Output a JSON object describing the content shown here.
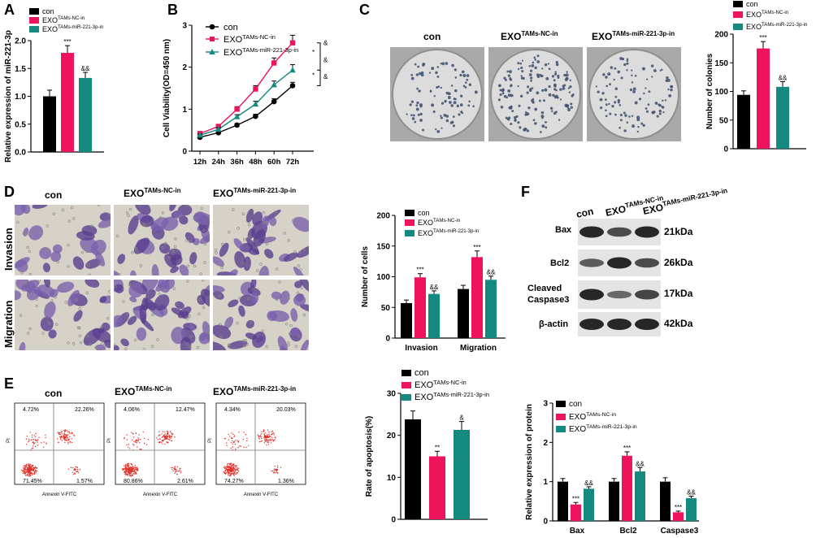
{
  "colors": {
    "con": "#000000",
    "nc": "#ee145b",
    "mir": "#138980"
  },
  "panels": {
    "A": "A",
    "B": "B",
    "C": "C",
    "D": "D",
    "E": "E",
    "F": "F"
  },
  "legend": {
    "con": "con",
    "exo": "EXO",
    "nc_sup": "TAMs-NC-in",
    "mir_sup": "TAMs-miR-221-3p-in"
  },
  "photo_labels": {
    "con": "con",
    "exo": "EXO",
    "nc_sup": "TAMs-NC-in",
    "mir_sup": "TAMs-miR-221-3p-in",
    "invasion": "Invasion",
    "migration": "Migration"
  },
  "flow": {
    "xlabel": "Annexin V-FITC",
    "ylabel": "PI",
    "plots": [
      {
        "q1": "4.72%",
        "q2": "22.26%",
        "q3": "71.45%",
        "q4": "1.57%"
      },
      {
        "q1": "4.06%",
        "q2": "12.47%",
        "q3": "80.86%",
        "q4": "2.61%"
      },
      {
        "q1": "4.34%",
        "q2": "20.03%",
        "q3": "74.27%",
        "q4": "1.36%"
      }
    ]
  },
  "western": {
    "lanes": [
      "con",
      "EXO",
      "EXO"
    ],
    "lane_sups": [
      "",
      "TAMs-NC-in",
      "TAMs-miR-221-3p-in"
    ],
    "rows": [
      {
        "name": "Bax",
        "kda": "21kDa"
      },
      {
        "name": "Bcl2",
        "kda": "26kDa"
      },
      {
        "name": "Cleaved Caspase3",
        "kda": "17kDa"
      },
      {
        "name": "β-actin",
        "kda": "42kDa"
      }
    ]
  },
  "chart_data": [
    {
      "panel": "A",
      "type": "bar",
      "categories": [
        "con",
        "EXOTAMs-NC-in",
        "EXOTAMs-miR-221-3p-in"
      ],
      "values": [
        1.0,
        1.78,
        1.33
      ],
      "errors": [
        0.11,
        0.13,
        0.1
      ],
      "sig": [
        "",
        "***",
        "&&"
      ],
      "ylabel": "Relative expression of miR-221-3p",
      "ylim": [
        0,
        2.0
      ],
      "yticks": [
        "0.0",
        "0.5",
        "1.0",
        "1.5",
        "2.0"
      ]
    },
    {
      "panel": "B",
      "type": "line",
      "x": [
        "12h",
        "24h",
        "36h",
        "48h",
        "60h",
        "72h"
      ],
      "series": [
        {
          "name": "con",
          "values": [
            0.33,
            0.44,
            0.62,
            0.83,
            1.18,
            1.56
          ]
        },
        {
          "name": "EXOTAMs-NC-in",
          "values": [
            0.42,
            0.59,
            1.0,
            1.48,
            2.1,
            2.58
          ]
        },
        {
          "name": "EXOTAMs-miR-221-3p-in",
          "values": [
            0.38,
            0.52,
            0.82,
            1.12,
            1.58,
            1.93
          ]
        }
      ],
      "errors": [
        [
          0.03,
          0.03,
          0.04,
          0.05,
          0.07,
          0.08
        ],
        [
          0.03,
          0.04,
          0.06,
          0.08,
          0.12,
          0.18
        ],
        [
          0.03,
          0.04,
          0.05,
          0.07,
          0.09,
          0.13
        ]
      ],
      "ylabel": "Cell Viability(OD=450 nm)",
      "ylim": [
        0,
        3
      ],
      "yticks": [
        "0",
        "1",
        "2",
        "3"
      ],
      "annotations": [
        "*",
        "*",
        "&",
        "&",
        "&"
      ]
    },
    {
      "panel": "C",
      "type": "bar",
      "categories": [
        "con",
        "EXOTAMs-NC-in",
        "EXOTAMs-miR-221-3p-in"
      ],
      "values": [
        94,
        175,
        108
      ],
      "errors": [
        7,
        12,
        9
      ],
      "sig": [
        "",
        "***",
        "&&"
      ],
      "ylabel": "Number of colonies",
      "ylim": [
        0,
        200
      ],
      "yticks": [
        "0",
        "50",
        "100",
        "150",
        "200"
      ]
    },
    {
      "panel": "D",
      "type": "bar",
      "categories": [
        "Invasion",
        "Migration"
      ],
      "series": [
        {
          "name": "con",
          "values": [
            57,
            80
          ]
        },
        {
          "name": "EXOTAMs-NC-in",
          "values": [
            99,
            132
          ]
        },
        {
          "name": "EXOTAMs-miR-221-3p-in",
          "values": [
            72,
            95
          ]
        }
      ],
      "errors": [
        [
          5,
          6
        ],
        [
          6,
          10
        ],
        [
          5,
          6
        ]
      ],
      "sig": [
        [
          "",
          "***",
          "&&"
        ],
        [
          "",
          "***",
          "&&"
        ]
      ],
      "ylabel": "Number of cells",
      "ylim": [
        0,
        200
      ],
      "yticks": [
        "0",
        "50",
        "100",
        "150",
        "200"
      ]
    },
    {
      "panel": "E",
      "type": "bar",
      "categories": [
        "con",
        "EXOTAMs-NC-in",
        "EXOTAMs-miR-221-3p-in"
      ],
      "values": [
        23.8,
        15.0,
        21.3
      ],
      "errors": [
        2.0,
        1.2,
        2.0
      ],
      "sig": [
        "",
        "**",
        "&"
      ],
      "ylabel": "Rate of apoptosis(%)",
      "ylim": [
        0,
        30
      ],
      "yticks": [
        "0",
        "10",
        "20",
        "30"
      ]
    },
    {
      "panel": "F",
      "type": "bar",
      "categories": [
        "Bax",
        "Bcl2",
        "Caspase3"
      ],
      "series": [
        {
          "name": "con",
          "values": [
            1.0,
            1.0,
            1.0
          ]
        },
        {
          "name": "EXOTAMs-NC-in",
          "values": [
            0.42,
            1.66,
            0.22
          ]
        },
        {
          "name": "EXOTAMs-miR-221-3p-in",
          "values": [
            0.82,
            1.26,
            0.58
          ]
        }
      ],
      "errors": [
        [
          0.08,
          0.08,
          0.1
        ],
        [
          0.05,
          0.1,
          0.03
        ],
        [
          0.05,
          0.1,
          0.05
        ]
      ],
      "sig": [
        [
          "",
          "***",
          "&&"
        ],
        [
          "",
          "***",
          "&&"
        ],
        [
          "",
          "***",
          "&&"
        ]
      ],
      "ylabel": "Relative expression of protein",
      "ylim": [
        0,
        3
      ],
      "yticks": [
        "0",
        "1",
        "2",
        "3"
      ]
    }
  ]
}
